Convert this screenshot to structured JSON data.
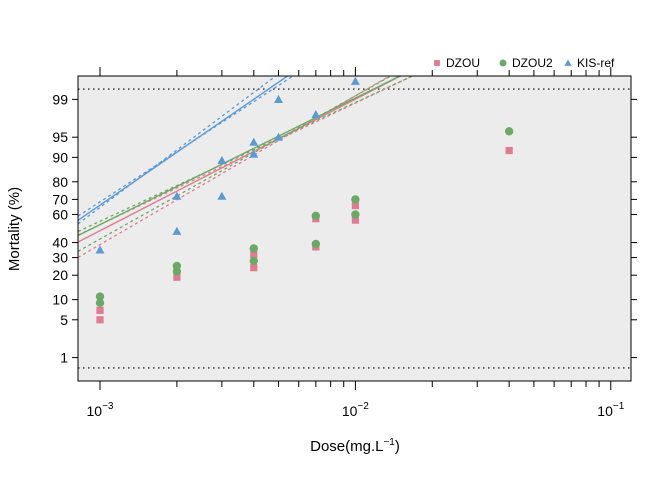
{
  "chart_data": {
    "type": "scatter",
    "title": "",
    "xlabel_main": "Dose(mg.L",
    "xlabel_sup": "−1",
    "xlabel_close": ")",
    "ylabel": "Mortality (%)",
    "x_scale": "log10",
    "y_scale": "probit",
    "xlim": [
      0.00082,
      0.12
    ],
    "ylim": [
      0.3,
      99.7
    ],
    "grid": false,
    "background": "#ececec",
    "legend_position": "top-right",
    "reference_lines_y": [
      0.6,
      99.4
    ],
    "x_ticks": [
      {
        "value": 0.001,
        "base": "10",
        "exp": "−3"
      },
      {
        "value": 0.01,
        "base": "10",
        "exp": "−2"
      },
      {
        "value": 0.1,
        "base": "10",
        "exp": "−1"
      }
    ],
    "x_minor_ticks": [
      0.002,
      0.003,
      0.004,
      0.005,
      0.006,
      0.007,
      0.008,
      0.009,
      0.02,
      0.03,
      0.04,
      0.05,
      0.06,
      0.07,
      0.08,
      0.09
    ],
    "y_ticks": [
      1,
      5,
      10,
      20,
      30,
      40,
      60,
      70,
      80,
      90,
      95,
      99
    ],
    "y_tick_labels": [
      "1",
      "5",
      "10",
      "20",
      "30",
      "40",
      "60",
      "70",
      "80",
      "90",
      "95",
      "99"
    ],
    "series": [
      {
        "name": "DZOU",
        "color": "#e07b91",
        "marker": "square",
        "points": [
          [
            0.001,
            5
          ],
          [
            0.001,
            7
          ],
          [
            0.002,
            19
          ],
          [
            0.004,
            24
          ],
          [
            0.004,
            32
          ],
          [
            0.007,
            37
          ],
          [
            0.007,
            57
          ],
          [
            0.01,
            56
          ],
          [
            0.01,
            66
          ],
          [
            0.04,
            92
          ]
        ],
        "fit": {
          "a": 7.07,
          "b": 2.37
        },
        "ci_lower": {
          "a": 6.64,
          "b": 2.19
        },
        "ci_upper": {
          "a": 7.75,
          "b": 2.68
        }
      },
      {
        "name": "DZOU2",
        "color": "#6aaa64",
        "marker": "circle",
        "points": [
          [
            0.001,
            9
          ],
          [
            0.001,
            11
          ],
          [
            0.002,
            22
          ],
          [
            0.002,
            25
          ],
          [
            0.004,
            28
          ],
          [
            0.004,
            36
          ],
          [
            0.007,
            39
          ],
          [
            0.007,
            59
          ],
          [
            0.01,
            60
          ],
          [
            0.01,
            70
          ],
          [
            0.04,
            96
          ]
        ],
        "fit": {
          "a": 6.91,
          "b": 2.28
        },
        "ci_lower": {
          "a": 6.55,
          "b": 2.14
        },
        "ci_upper": {
          "a": 7.55,
          "b": 2.58
        }
      },
      {
        "name": "KIS-ref",
        "color": "#5b9bd5",
        "marker": "triangle",
        "points": [
          [
            0.001,
            35
          ],
          [
            0.002,
            48
          ],
          [
            0.002,
            72
          ],
          [
            0.003,
            72
          ],
          [
            0.003,
            89
          ],
          [
            0.004,
            91
          ],
          [
            0.004,
            94
          ],
          [
            0.005,
            95
          ],
          [
            0.005,
            99
          ],
          [
            0.007,
            98
          ],
          [
            0.01,
            99.6
          ]
        ],
        "fit": {
          "a": 9.93,
          "b": 3.17
        },
        "ci_lower": {
          "a": 9.48,
          "b": 3.0
        },
        "ci_upper": {
          "a": 10.7,
          "b": 3.44
        }
      }
    ]
  }
}
